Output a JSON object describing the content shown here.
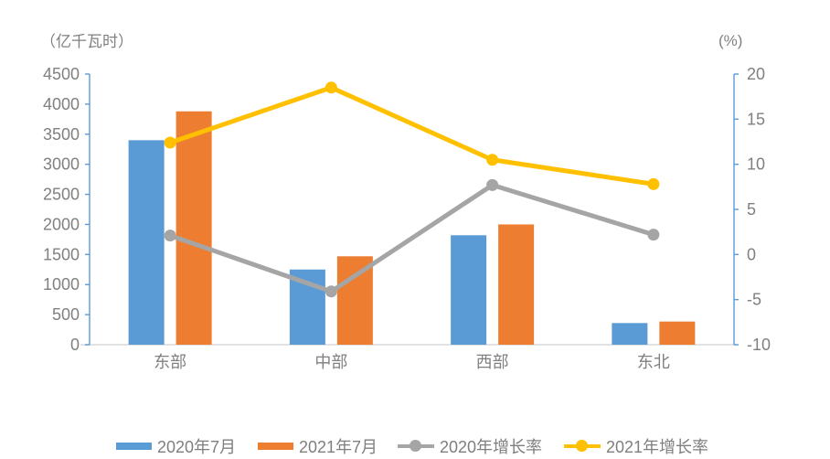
{
  "colors": {
    "axis_line": "#5B9BD5",
    "baseline": "#D9D9D9",
    "tick_text": "#808080",
    "category_text": "#808080",
    "legend_text": "#7f7f7f",
    "background": "#ffffff"
  },
  "chart_data": {
    "type": "bar",
    "subtype": "combo-bar-line-dual-axis",
    "categories": [
      "东部",
      "中部",
      "西部",
      "东北"
    ],
    "bar_series": [
      {
        "name": "2020年7月",
        "color": "#5B9BD5",
        "axis": "left",
        "values": [
          3400,
          1250,
          1820,
          360
        ]
      },
      {
        "name": "2021年7月",
        "color": "#ED7D31",
        "axis": "left",
        "values": [
          3880,
          1470,
          2000,
          385
        ]
      }
    ],
    "line_series": [
      {
        "name": "2020年增长率",
        "color": "#A5A5A5",
        "axis": "right",
        "marker": "circle",
        "values": [
          2.1,
          -4.1,
          7.7,
          2.2
        ]
      },
      {
        "name": "2021年增长率",
        "color": "#FFC000",
        "axis": "right",
        "marker": "circle",
        "values": [
          12.4,
          18.5,
          10.5,
          7.8
        ]
      }
    ],
    "left_axis": {
      "title": "（亿千瓦时）",
      "min": 0,
      "max": 4500,
      "step": 500,
      "ticks": [
        0,
        500,
        1000,
        1500,
        2000,
        2500,
        3000,
        3500,
        4000,
        4500
      ]
    },
    "right_axis": {
      "title": "(%)",
      "min": -10,
      "max": 20,
      "step": 5,
      "ticks": [
        -10,
        -5,
        0,
        5,
        10,
        15,
        20
      ]
    },
    "grid": false,
    "legend_position": "bottom"
  }
}
